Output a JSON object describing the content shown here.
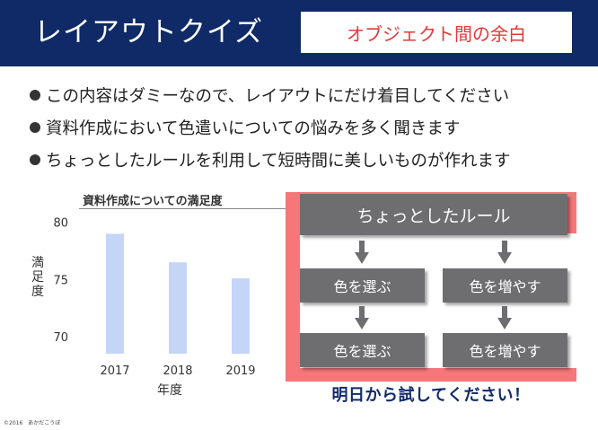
{
  "header": {
    "title": "レイアウトクイズ",
    "badge": "オブジェクト間の余白",
    "background_color": "#0f2a66",
    "badge_text_color": "#e23a3a"
  },
  "bullets": [
    "この内容はダミーなので、レイアウトにだけ着目してください",
    "資料作成において色遣いについての悩みを多く聞きます",
    "ちょっとしたルールを利用して短時間に美しいものが作れます"
  ],
  "chart_data": {
    "type": "bar",
    "title": "資料作成についての満足度",
    "categories": [
      "2017",
      "2018",
      "2019"
    ],
    "values": [
      79,
      76.5,
      75.1
    ],
    "xlabel": "年度",
    "ylabel": "満足度",
    "ylim": [
      68.5,
      81
    ],
    "yticks": [
      70,
      75,
      80
    ],
    "bar_color": "#c5d5f7",
    "grid": false
  },
  "flow": {
    "top": "ちょっとしたルール",
    "row1": [
      "色を選ぶ",
      "色を増やす"
    ],
    "row2": [
      "色を選ぶ",
      "色を増やす"
    ],
    "panel_color": "#f6767a",
    "box_color": "#6e6e70"
  },
  "cta": "明日から試してください！",
  "footer": {
    "copyright": "©2016　あかだこうぼ"
  }
}
